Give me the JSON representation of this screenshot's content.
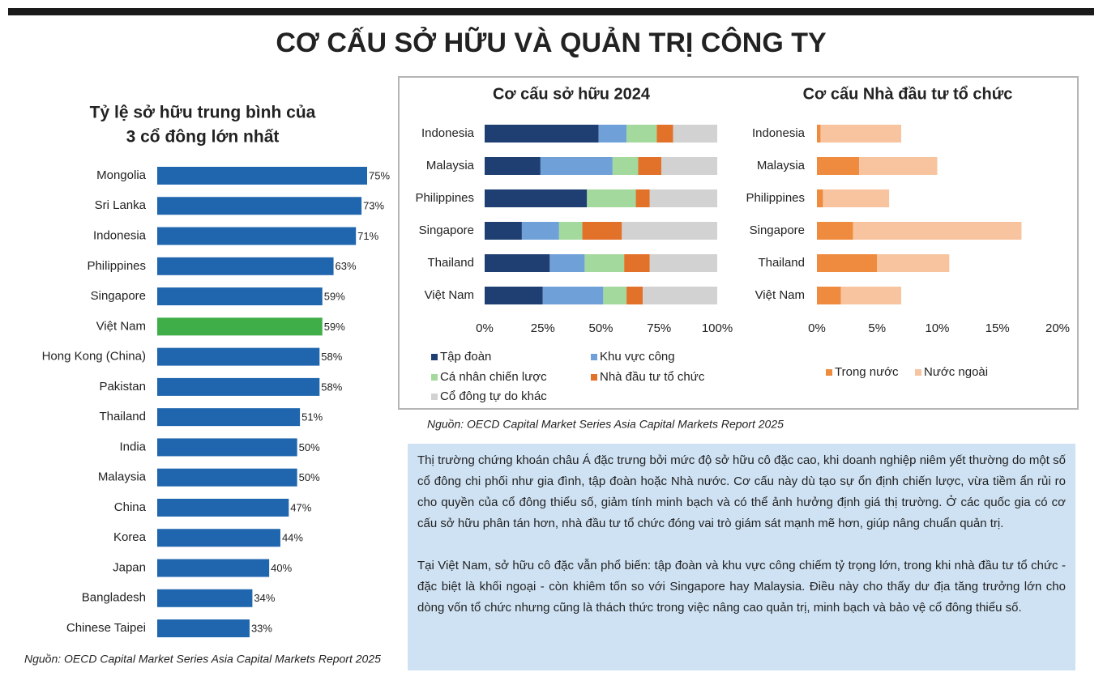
{
  "title": "CƠ CẤU SỞ HỮU VÀ QUẢN TRỊ CÔNG TY",
  "chart_data": [
    {
      "type": "bar",
      "orientation": "horizontal",
      "title": [
        "Tỷ lệ sở hữu trung bình của",
        "3 cổ đông lớn nhất"
      ],
      "categories": [
        "Mongolia",
        "Sri Lanka",
        "Indonesia",
        "Philippines",
        "Singapore",
        "Việt Nam",
        "Hong Kong (China)",
        "Pakistan",
        "Thailand",
        "India",
        "Malaysia",
        "China",
        "Korea",
        "Japan",
        "Bangladesh",
        "Chinese Taipei"
      ],
      "values": [
        75,
        73,
        71,
        63,
        59,
        59,
        58,
        58,
        51,
        50,
        50,
        47,
        44,
        40,
        34,
        33
      ],
      "value_labels": [
        "75%",
        "73%",
        "71%",
        "63%",
        "59%",
        "59%",
        "58%",
        "58%",
        "51%",
        "50%",
        "50%",
        "47%",
        "44%",
        "40%",
        "34%",
        "33%"
      ],
      "colors": [
        "#1f66ae",
        "#1f66ae",
        "#1f66ae",
        "#1f66ae",
        "#1f66ae",
        "#3fae49",
        "#1f66ae",
        "#1f66ae",
        "#1f66ae",
        "#1f66ae",
        "#1f66ae",
        "#1f66ae",
        "#1f66ae",
        "#1f66ae",
        "#1f66ae",
        "#1f66ae"
      ]
    },
    {
      "type": "stacked_bar",
      "orientation": "horizontal",
      "title": "Cơ cấu sở hữu 2024",
      "categories": [
        "Indonesia",
        "Malaysia",
        "Philippines",
        "Singapore",
        "Thailand",
        "Việt Nam"
      ],
      "series": [
        {
          "name": "Tập đoàn",
          "color": "#1f3f73",
          "values": [
            49,
            24,
            44,
            16,
            28,
            25
          ]
        },
        {
          "name": "Khu vực công",
          "color": "#6fa0d8",
          "values": [
            12,
            31,
            0,
            16,
            15,
            26
          ]
        },
        {
          "name": "Cá nhân chiến lược",
          "color": "#a3d99c",
          "values": [
            13,
            11,
            21,
            10,
            17,
            10
          ]
        },
        {
          "name": "Nhà đầu tư tổ chức",
          "color": "#e2712a",
          "values": [
            7,
            10,
            6,
            17,
            11,
            7
          ]
        },
        {
          "name": "Cổ đông tự do khác",
          "color": "#d2d2d2",
          "values": [
            19,
            24,
            29,
            41,
            29,
            32
          ]
        }
      ],
      "xlim": [
        0,
        100
      ],
      "xticks": [
        {
          "value": 0,
          "label": "0%"
        },
        {
          "value": 25,
          "label": "25%"
        },
        {
          "value": 50,
          "label": "50%"
        },
        {
          "value": 75,
          "label": "75%"
        },
        {
          "value": 100,
          "label": "100%"
        }
      ]
    },
    {
      "type": "stacked_bar",
      "orientation": "horizontal",
      "title": "Cơ cấu Nhà đầu tư tổ chức",
      "categories": [
        "Indonesia",
        "Malaysia",
        "Philippines",
        "Singapore",
        "Thailand",
        "Việt Nam"
      ],
      "series": [
        {
          "name": "Trong nước",
          "color": "#ef8b3e",
          "values": [
            0.3,
            3.5,
            0.5,
            3,
            5,
            2
          ]
        },
        {
          "name": "Nước ngoài",
          "color": "#f8c4a0",
          "values": [
            6.7,
            6.5,
            5.5,
            14,
            6,
            5
          ]
        }
      ],
      "xlim": [
        0,
        20
      ],
      "xticks": [
        {
          "value": 0,
          "label": "0%"
        },
        {
          "value": 5,
          "label": "5%"
        },
        {
          "value": 10,
          "label": "10%"
        },
        {
          "value": 15,
          "label": "15%"
        },
        {
          "value": 20,
          "label": "20%"
        }
      ]
    }
  ],
  "sources": [
    "Nguồn: OECD Capital Market Series Asia Capital Markets Report 2025",
    "Nguồn: OECD Capital Market Series Asia Capital Markets Report 2025"
  ],
  "text": {
    "paragraphs": [
      "Thị trường chứng khoán châu Á đặc trưng bởi mức độ sở hữu cô đặc cao, khi doanh nghiệp niêm yết thường do một số cổ đông chi phối như gia đình, tập đoàn hoặc Nhà nước. Cơ cấu này dù tạo sự ổn định chiến lược, vừa tiềm ẩn rủi ro cho quyền của cổ đông thiểu số, giảm tính minh bạch và có thể ảnh hưởng định giá thị trường. Ở các quốc gia có cơ cấu sở hữu phân tán hơn, nhà đầu tư tổ chức đóng vai trò giám sát mạnh mẽ hơn, giúp nâng chuẩn quản trị.",
      "Tại Việt Nam, sở hữu cô đặc vẫn phổ biến: tập đoàn và khu vực công chiếm tỷ trọng lớn, trong khi nhà đầu tư tổ chức - đặc biệt là khối ngoại - còn khiêm tốn so với Singapore hay Malaysia. Điều này cho thấy dư địa tăng trưởng lớn cho dòng vốn tổ chức nhưng cũng là thách thức trong việc nâng cao quản trị, minh bạch và bảo vệ cổ đông thiểu số."
    ]
  }
}
